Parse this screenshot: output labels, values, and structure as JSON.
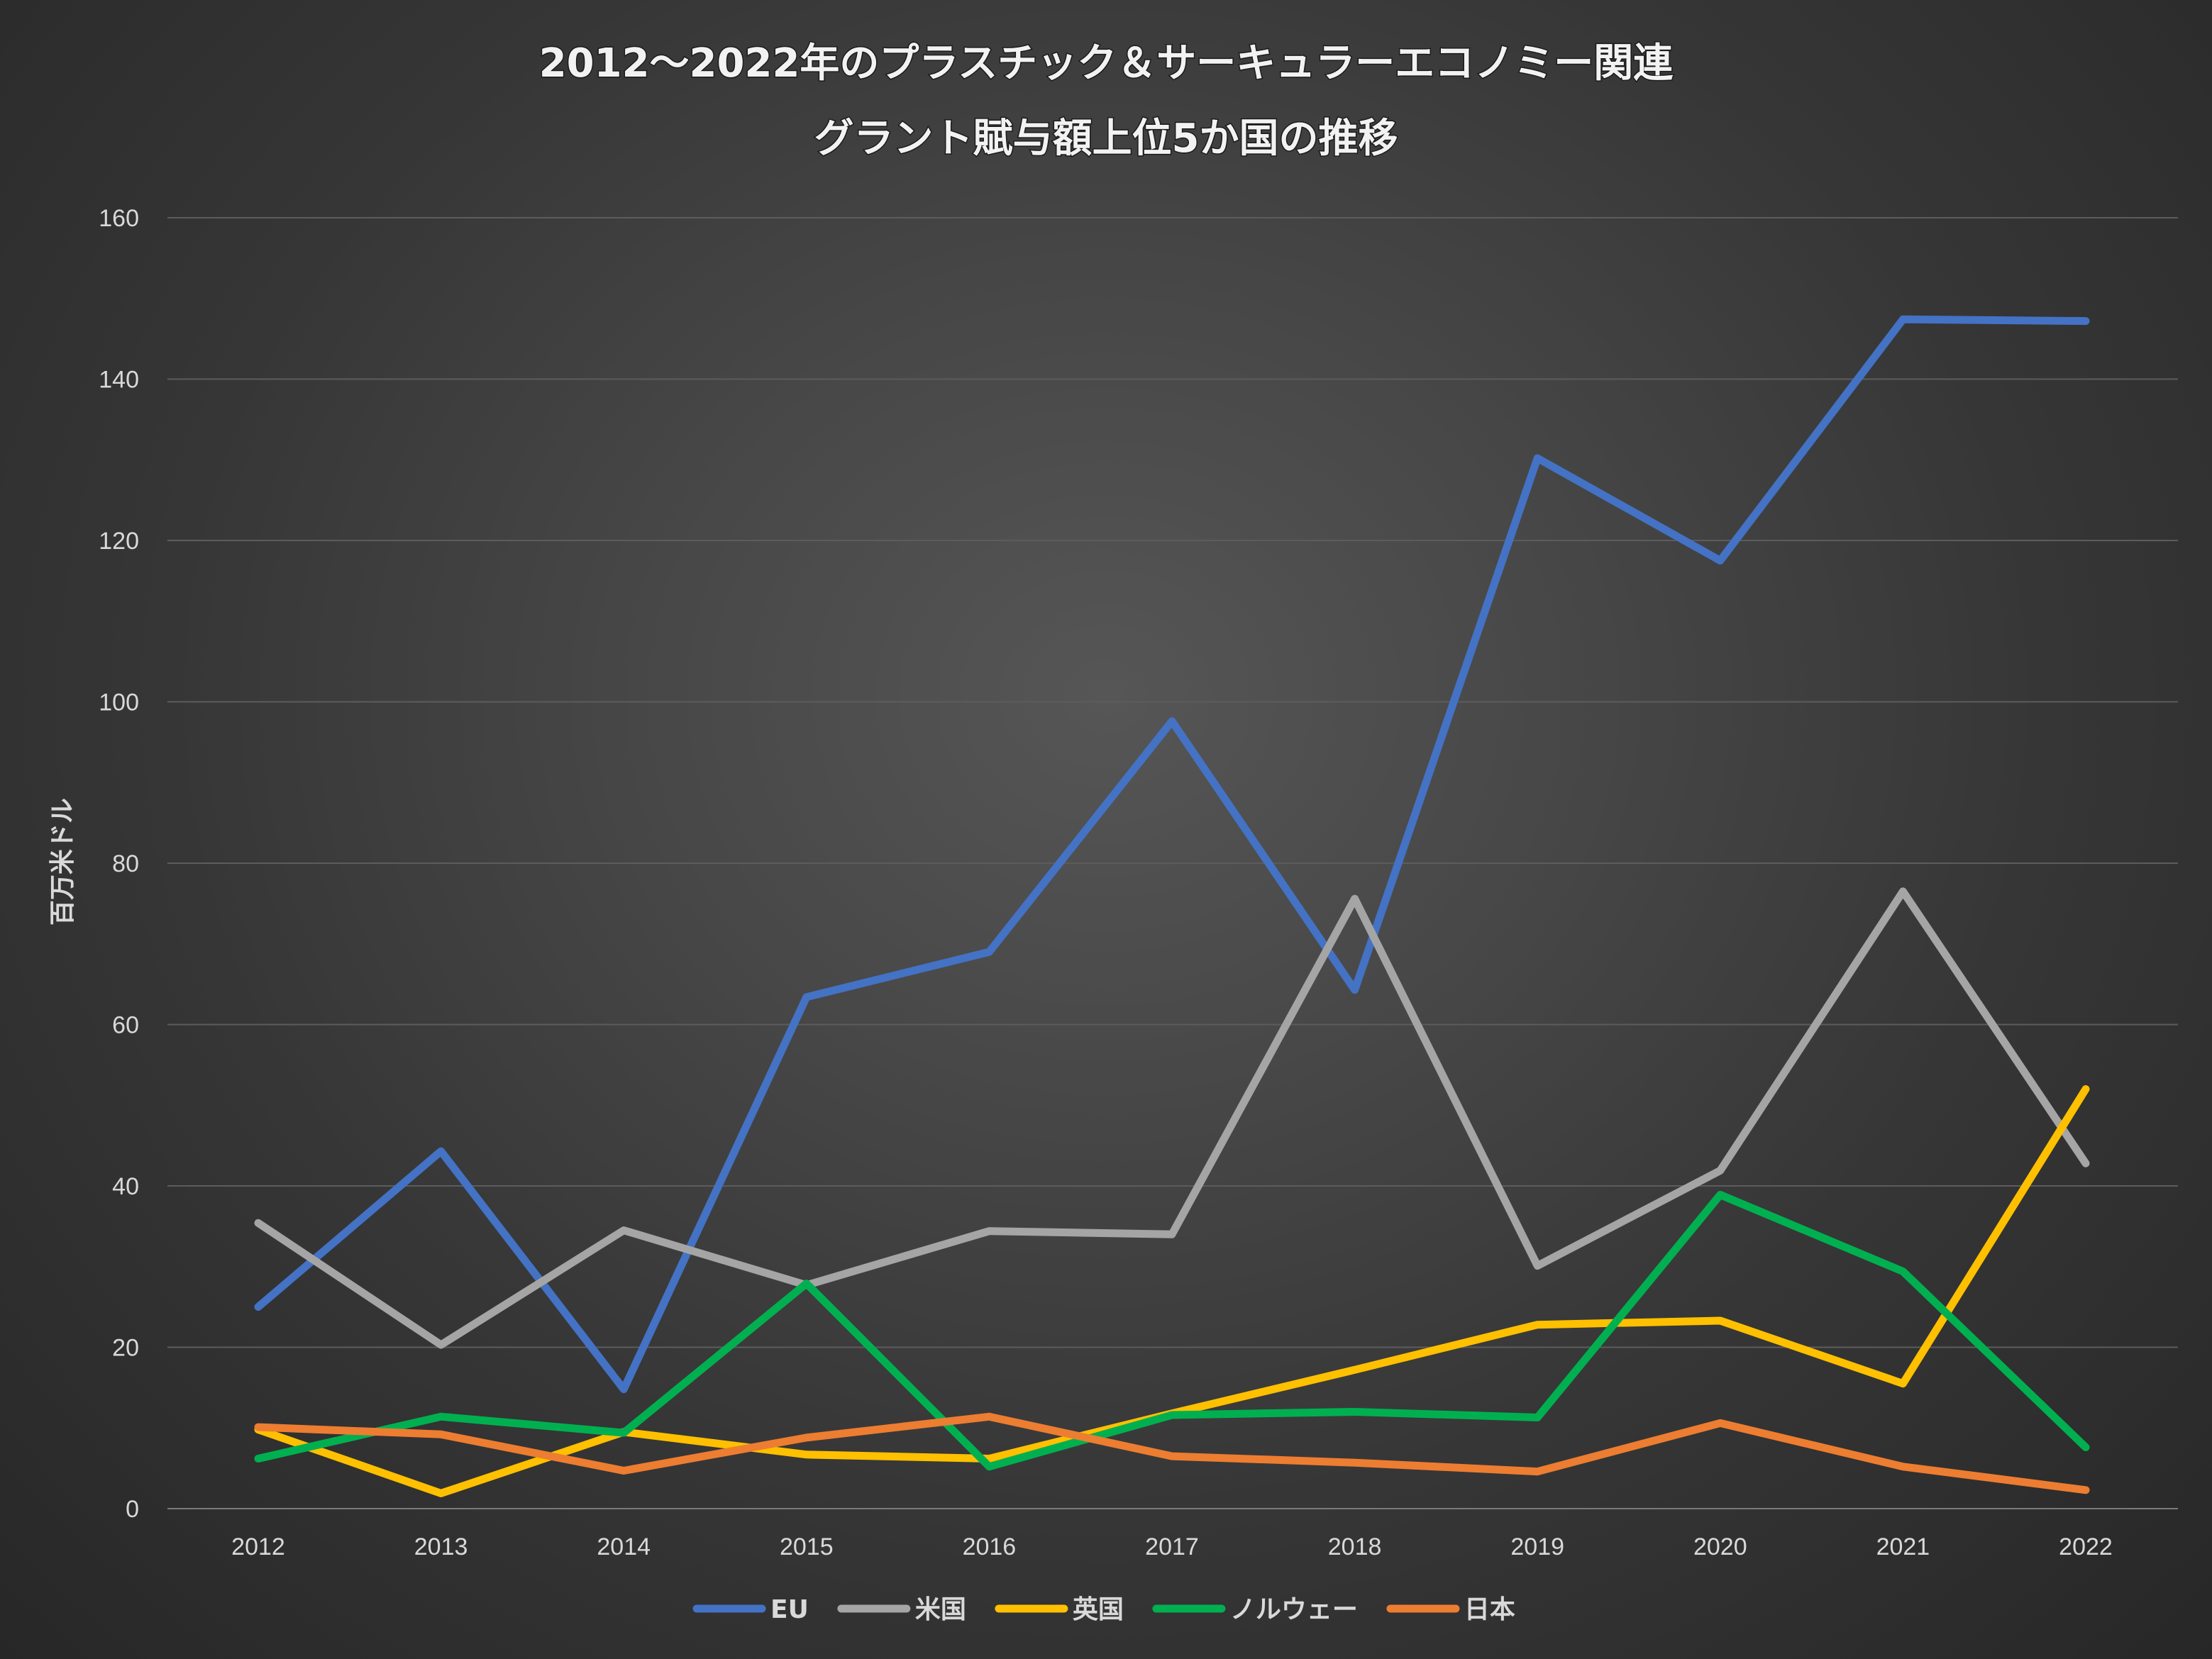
{
  "chart_data": {
    "type": "line",
    "title_lines": [
      "2012～2022年のプラスチック＆サーキュラーエコノミー関連",
      "グラント賦与額上位5か国の推移"
    ],
    "xlabel": "",
    "ylabel": "百万米ドル",
    "ylim": [
      0,
      160
    ],
    "yticks": [
      0,
      20,
      40,
      60,
      80,
      100,
      120,
      140,
      160
    ],
    "categories": [
      "2012",
      "2013",
      "2014",
      "2015",
      "2016",
      "2017",
      "2018",
      "2019",
      "2020",
      "2021",
      "2022"
    ],
    "grid": true,
    "legend_position": "bottom",
    "series": [
      {
        "name": "EU",
        "color": "#4472C4",
        "values": [
          25,
          44.3,
          14.8,
          63.4,
          69,
          97.6,
          64.3,
          130.2,
          117.5,
          147.4,
          147.2
        ]
      },
      {
        "name": "米国",
        "color": "#A5A5A5",
        "values": [
          35.4,
          20.3,
          34.5,
          27.7,
          34.4,
          34,
          75.6,
          30.1,
          41.9,
          76.5,
          42.8
        ]
      },
      {
        "name": "英国",
        "color": "#FFC000",
        "values": [
          9.8,
          1.9,
          9.5,
          6.7,
          6.2,
          11.8,
          17.2,
          22.8,
          23.3,
          15.5,
          52
        ]
      },
      {
        "name": "ノルウェー",
        "color": "#00B050",
        "values": [
          6.2,
          11.4,
          9.4,
          27.9,
          5.2,
          11.6,
          12,
          11.3,
          38.9,
          29.4,
          7.6
        ]
      },
      {
        "name": "日本",
        "color": "#ED7D31",
        "values": [
          10.1,
          9.2,
          4.7,
          8.8,
          11.4,
          6.5,
          5.7,
          4.6,
          10.6,
          5.2,
          2.3
        ]
      }
    ]
  }
}
